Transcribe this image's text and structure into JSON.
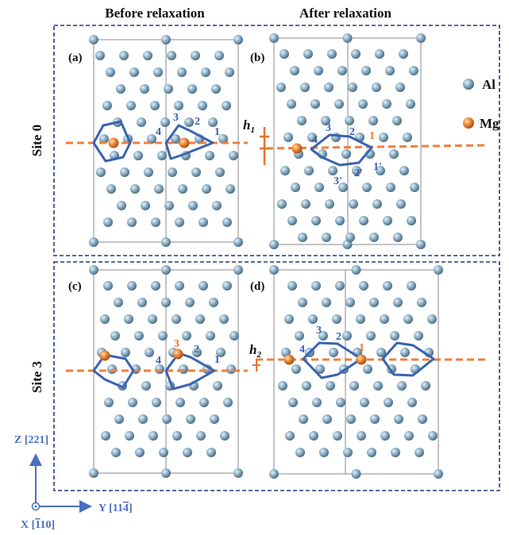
{
  "column_headers": [
    "Before relaxation",
    "After relaxation"
  ],
  "rows": [
    "Site 0",
    "Site 3"
  ],
  "panels": [
    {
      "label": "(a)",
      "atom_labels": [
        "1",
        "2",
        "3",
        "4"
      ]
    },
    {
      "label": "(b)",
      "atom_labels": [
        "1",
        "2",
        "3",
        "4",
        "1'",
        "2'",
        "3'"
      ]
    },
    {
      "label": "(c)",
      "atom_labels": [
        "1",
        "2",
        "3",
        "4"
      ]
    },
    {
      "label": "(d)",
      "atom_labels": [
        "1",
        "2",
        "3",
        "4"
      ]
    }
  ],
  "heights": [
    {
      "symbol": "h",
      "subscript": "1"
    },
    {
      "symbol": "h",
      "subscript": "2"
    }
  ],
  "legend": [
    "Al",
    "Mg"
  ],
  "axes": {
    "z": "Z [221]",
    "y": {
      "prefix": "Y [11",
      "bar": "4",
      "suffix": "]"
    },
    "x": {
      "prefix": "X [",
      "bar": "1",
      "suffix": "10]"
    }
  }
}
